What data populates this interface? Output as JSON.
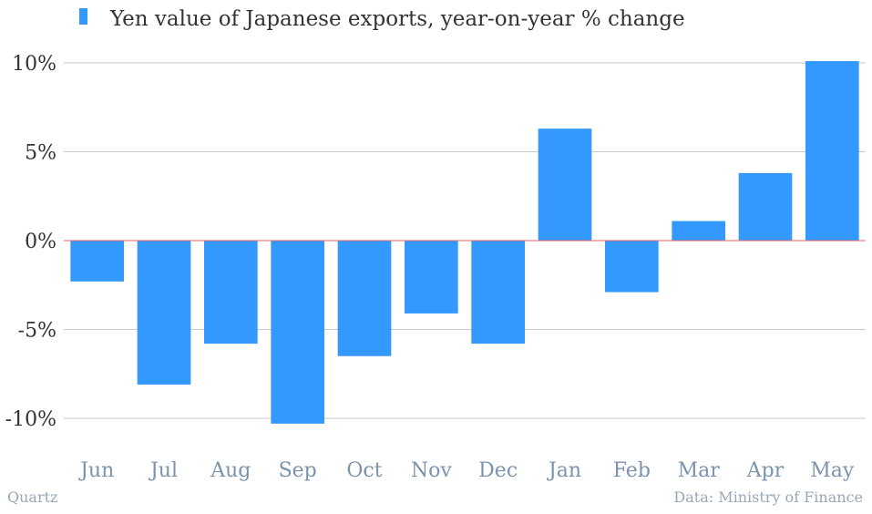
{
  "chart_data": {
    "type": "bar",
    "title": "",
    "xlabel": "",
    "ylabel": "",
    "categories": [
      "Jun",
      "Jul",
      "Aug",
      "Sep",
      "Oct",
      "Nov",
      "Dec",
      "Jan",
      "Feb",
      "Mar",
      "Apr",
      "May"
    ],
    "series": [
      {
        "name": "Yen value of Japanese exports, year-on-year % change",
        "values": [
          -2.3,
          -8.1,
          -5.8,
          -10.3,
          -6.5,
          -4.1,
          -5.8,
          6.3,
          -2.9,
          1.1,
          3.8,
          10.1
        ],
        "color": "#3399ff"
      }
    ],
    "ylim": [
      -10.5,
      10.5
    ],
    "yticks": [
      10,
      5,
      0,
      -5,
      -10
    ],
    "ytick_labels": [
      "10%",
      "5%",
      "0%",
      "-5%",
      "-10%"
    ],
    "grid": true,
    "legend": "top-left",
    "zero_line_color": "#e06666",
    "grid_color": "#c8c8c8"
  },
  "footer": {
    "source_left": "Quartz",
    "source_right": "Data: Ministry of Finance"
  }
}
